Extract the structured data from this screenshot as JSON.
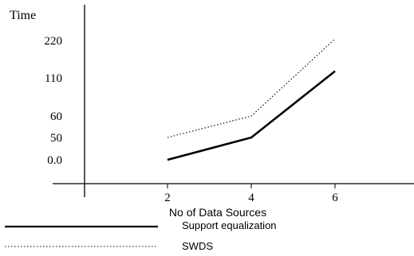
{
  "chart_data": {
    "type": "line",
    "ylabel": "Time",
    "xlabel": "No of Data Sources",
    "categories": [
      "2",
      "4",
      "6"
    ],
    "y_ticks": [
      "220",
      "110",
      "60",
      "50",
      "0.0"
    ],
    "series": [
      {
        "name": "Support equalization",
        "values": [
          0.0,
          50,
          130
        ],
        "style": "solid",
        "color": "#000000"
      },
      {
        "name": "SWDS",
        "values": [
          50,
          60,
          230
        ],
        "style": "dotted",
        "color": "#000000"
      }
    ],
    "grid": false,
    "legend_placement": "bottom-left"
  }
}
